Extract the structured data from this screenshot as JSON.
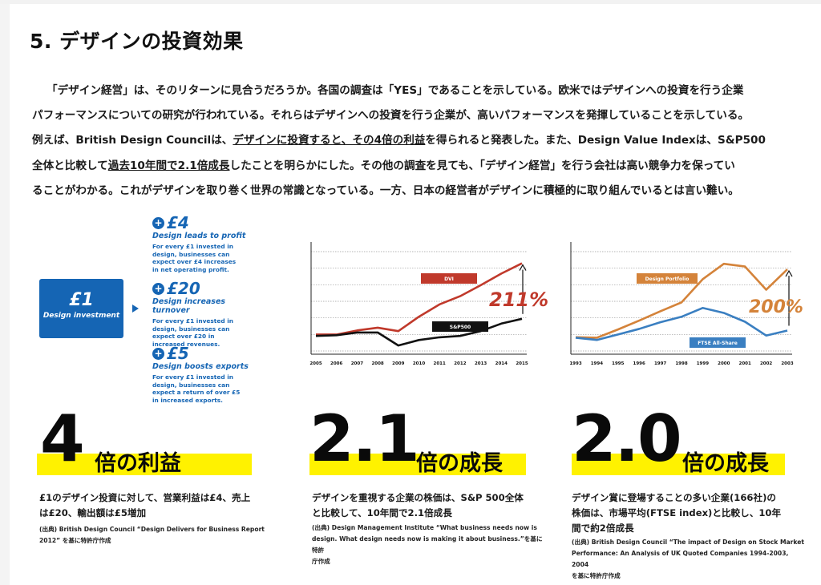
{
  "title": "5. デザインの投資効果",
  "paragraph": {
    "l1": "「デザイン経営」は、そのリターンに見合うだろうか。各国の調査は「YES」であることを示している。欧米ではデザインへの投資を行う企業",
    "l2": "パフォーマンスについての研究が行われている。それらはデザインへの投資を行う企業が、高いパフォーマンスを発揮していることを示している。",
    "l3a": "例えば、British Design Councilは、",
    "l3b": "デザインに投資すると、その4倍の利益",
    "l3c": "を得られると発表した。また、Design Value Indexは、S&P500",
    "l4a": "全体と比較して",
    "l4b": "過去10年間で2.1倍成長",
    "l4c": "したことを明らかにした。その他の調査を見ても、「デザイン経営」を行う会社は高い競争力を保ってい",
    "l5": "ることがわかる。これがデザインを取り巻く世界の常識となっている。一方、日本の経営者がデザインに積極的に取り組んでいるとは言い難い。"
  },
  "infographic": {
    "box_amount": "£1",
    "box_label": "Design investment",
    "items": [
      {
        "amount": "£4",
        "title": "Design leads to profit",
        "desc": "For every £1 invested in design, businesses can expect over £4 increases in net operating profit."
      },
      {
        "amount": "£20",
        "title": "Design increases turnover",
        "desc": "For every £1 invested in design, businesses can expect over £20 in increased revenues."
      },
      {
        "amount": "£5",
        "title": "Design boosts exports",
        "desc": "For every £1 invested in design, businesses can expect a return of over £5 in increased exports."
      }
    ]
  },
  "chart_data": [
    {
      "type": "line",
      "x": [
        "2005",
        "2006",
        "2007",
        "2008",
        "2009",
        "2010",
        "2011",
        "2012",
        "2013",
        "2014",
        "2015"
      ],
      "series": [
        {
          "name": "DVI",
          "color": "#c0392b",
          "values": [
            0.04,
            0.04,
            0.1,
            0.14,
            0.09,
            0.3,
            0.48,
            0.6,
            0.76,
            0.93,
            1.08
          ]
        },
        {
          "name": "S&P500",
          "color": "#111111",
          "values": [
            0.02,
            0.03,
            0.07,
            0.07,
            -0.12,
            -0.04,
            0.0,
            0.02,
            0.09,
            0.2,
            0.27
          ]
        }
      ],
      "ylim": [
        -0.2,
        1.25
      ],
      "annotation": "211%",
      "grid": true
    },
    {
      "type": "line",
      "x": [
        "1993",
        "1994",
        "1995",
        "1996",
        "1997",
        "1998",
        "1999",
        "2000",
        "2001",
        "2002",
        "2003"
      ],
      "series": [
        {
          "name": "Design Portfolio",
          "color": "#d4833a",
          "values": [
            0.05,
            0.04,
            0.19,
            0.35,
            0.52,
            0.68,
            1.1,
            1.38,
            1.33,
            0.91,
            1.28
          ]
        },
        {
          "name": "FTSE All-Share",
          "color": "#3a7fc1",
          "values": [
            0.04,
            0.0,
            0.1,
            0.2,
            0.32,
            0.42,
            0.58,
            0.49,
            0.33,
            0.08,
            0.17
          ]
        }
      ],
      "ylim": [
        -0.2,
        1.6
      ],
      "annotation": "200%",
      "grid": true
    }
  ],
  "stats": [
    {
      "number": "4",
      "suffix": "倍の利益",
      "desc1": "£1のデザイン投資に対して、営業利益は£4、売上",
      "desc2": "は£20、輸出額は£5増加",
      "src1": "(出典) British Design Council “Design Delivers for Business Report",
      "src2": "2012” を基に特許庁作成",
      "src3": ""
    },
    {
      "number": "2.1",
      "suffix": "倍の成長",
      "desc1": "デザインを重視する企業の株価は、S&P 500全体",
      "desc2": "と比較して、10年間で2.1倍成長",
      "src1": "(出典) Design Management Institute “What business needs now is",
      "src2": "design. What design needs now is making it about business.”を基に特許",
      "src3": "庁作成"
    },
    {
      "number": "2.0",
      "suffix": "倍の成長",
      "desc1": "デザイン賞に登場することの多い企業(166社)の",
      "desc2": "株価は、市場平均(FTSE index)と比較し、10年",
      "desc3": "間で約2倍成長",
      "src1": "(出典) British Design Council “The impact of Design on Stock Market",
      "src2": "Performance: An Analysis of UK Quoted Companies 1994-2003, 2004",
      "src3": "を基に特許庁作成"
    }
  ]
}
